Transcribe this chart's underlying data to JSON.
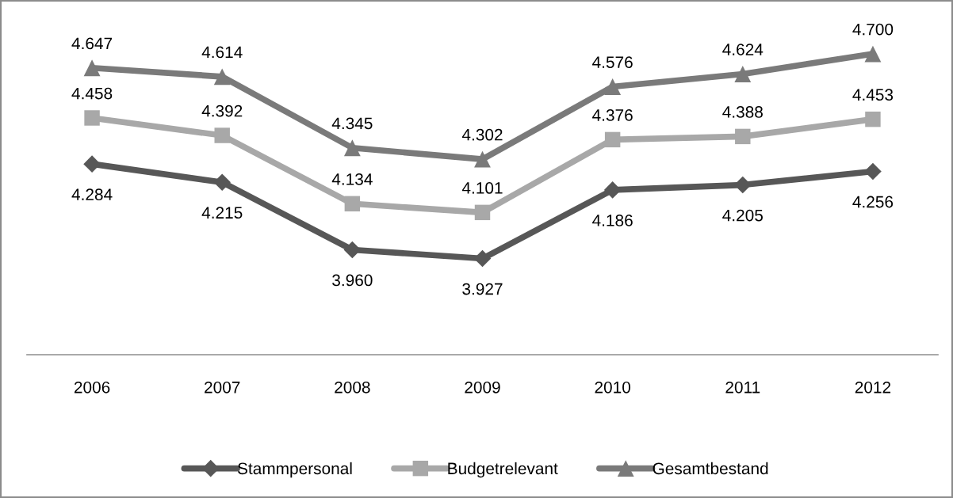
{
  "chart_data": {
    "type": "line",
    "categories": [
      "2006",
      "2007",
      "2008",
      "2009",
      "2010",
      "2011",
      "2012"
    ],
    "series": [
      {
        "name": "Stammpersonal",
        "color": "#575757",
        "marker": "diamond",
        "values": [
          4.284,
          4.215,
          3.96,
          3.927,
          4.186,
          4.205,
          4.256
        ],
        "value_labels": [
          "4.284",
          "4.215",
          "3.960",
          "3.927",
          "4.186",
          "4.205",
          "4.256"
        ]
      },
      {
        "name": "Budgetrelevant",
        "color": "#a8a8a8",
        "marker": "square",
        "values": [
          4.458,
          4.392,
          4.134,
          4.101,
          4.376,
          4.388,
          4.453
        ],
        "value_labels": [
          "4.458",
          "4.392",
          "4.134",
          "4.101",
          "4.376",
          "4.388",
          "4.453"
        ]
      },
      {
        "name": "Gesamtbestand",
        "color": "#7a7a7a",
        "marker": "triangle",
        "values": [
          4.647,
          4.614,
          4.345,
          4.302,
          4.576,
          4.624,
          4.7
        ],
        "value_labels": [
          "4.647",
          "4.614",
          "4.345",
          "4.302",
          "4.576",
          "4.624",
          "4.700"
        ]
      }
    ],
    "tick_labels": "x",
    "legend": "bottom",
    "line_style": "solid"
  }
}
